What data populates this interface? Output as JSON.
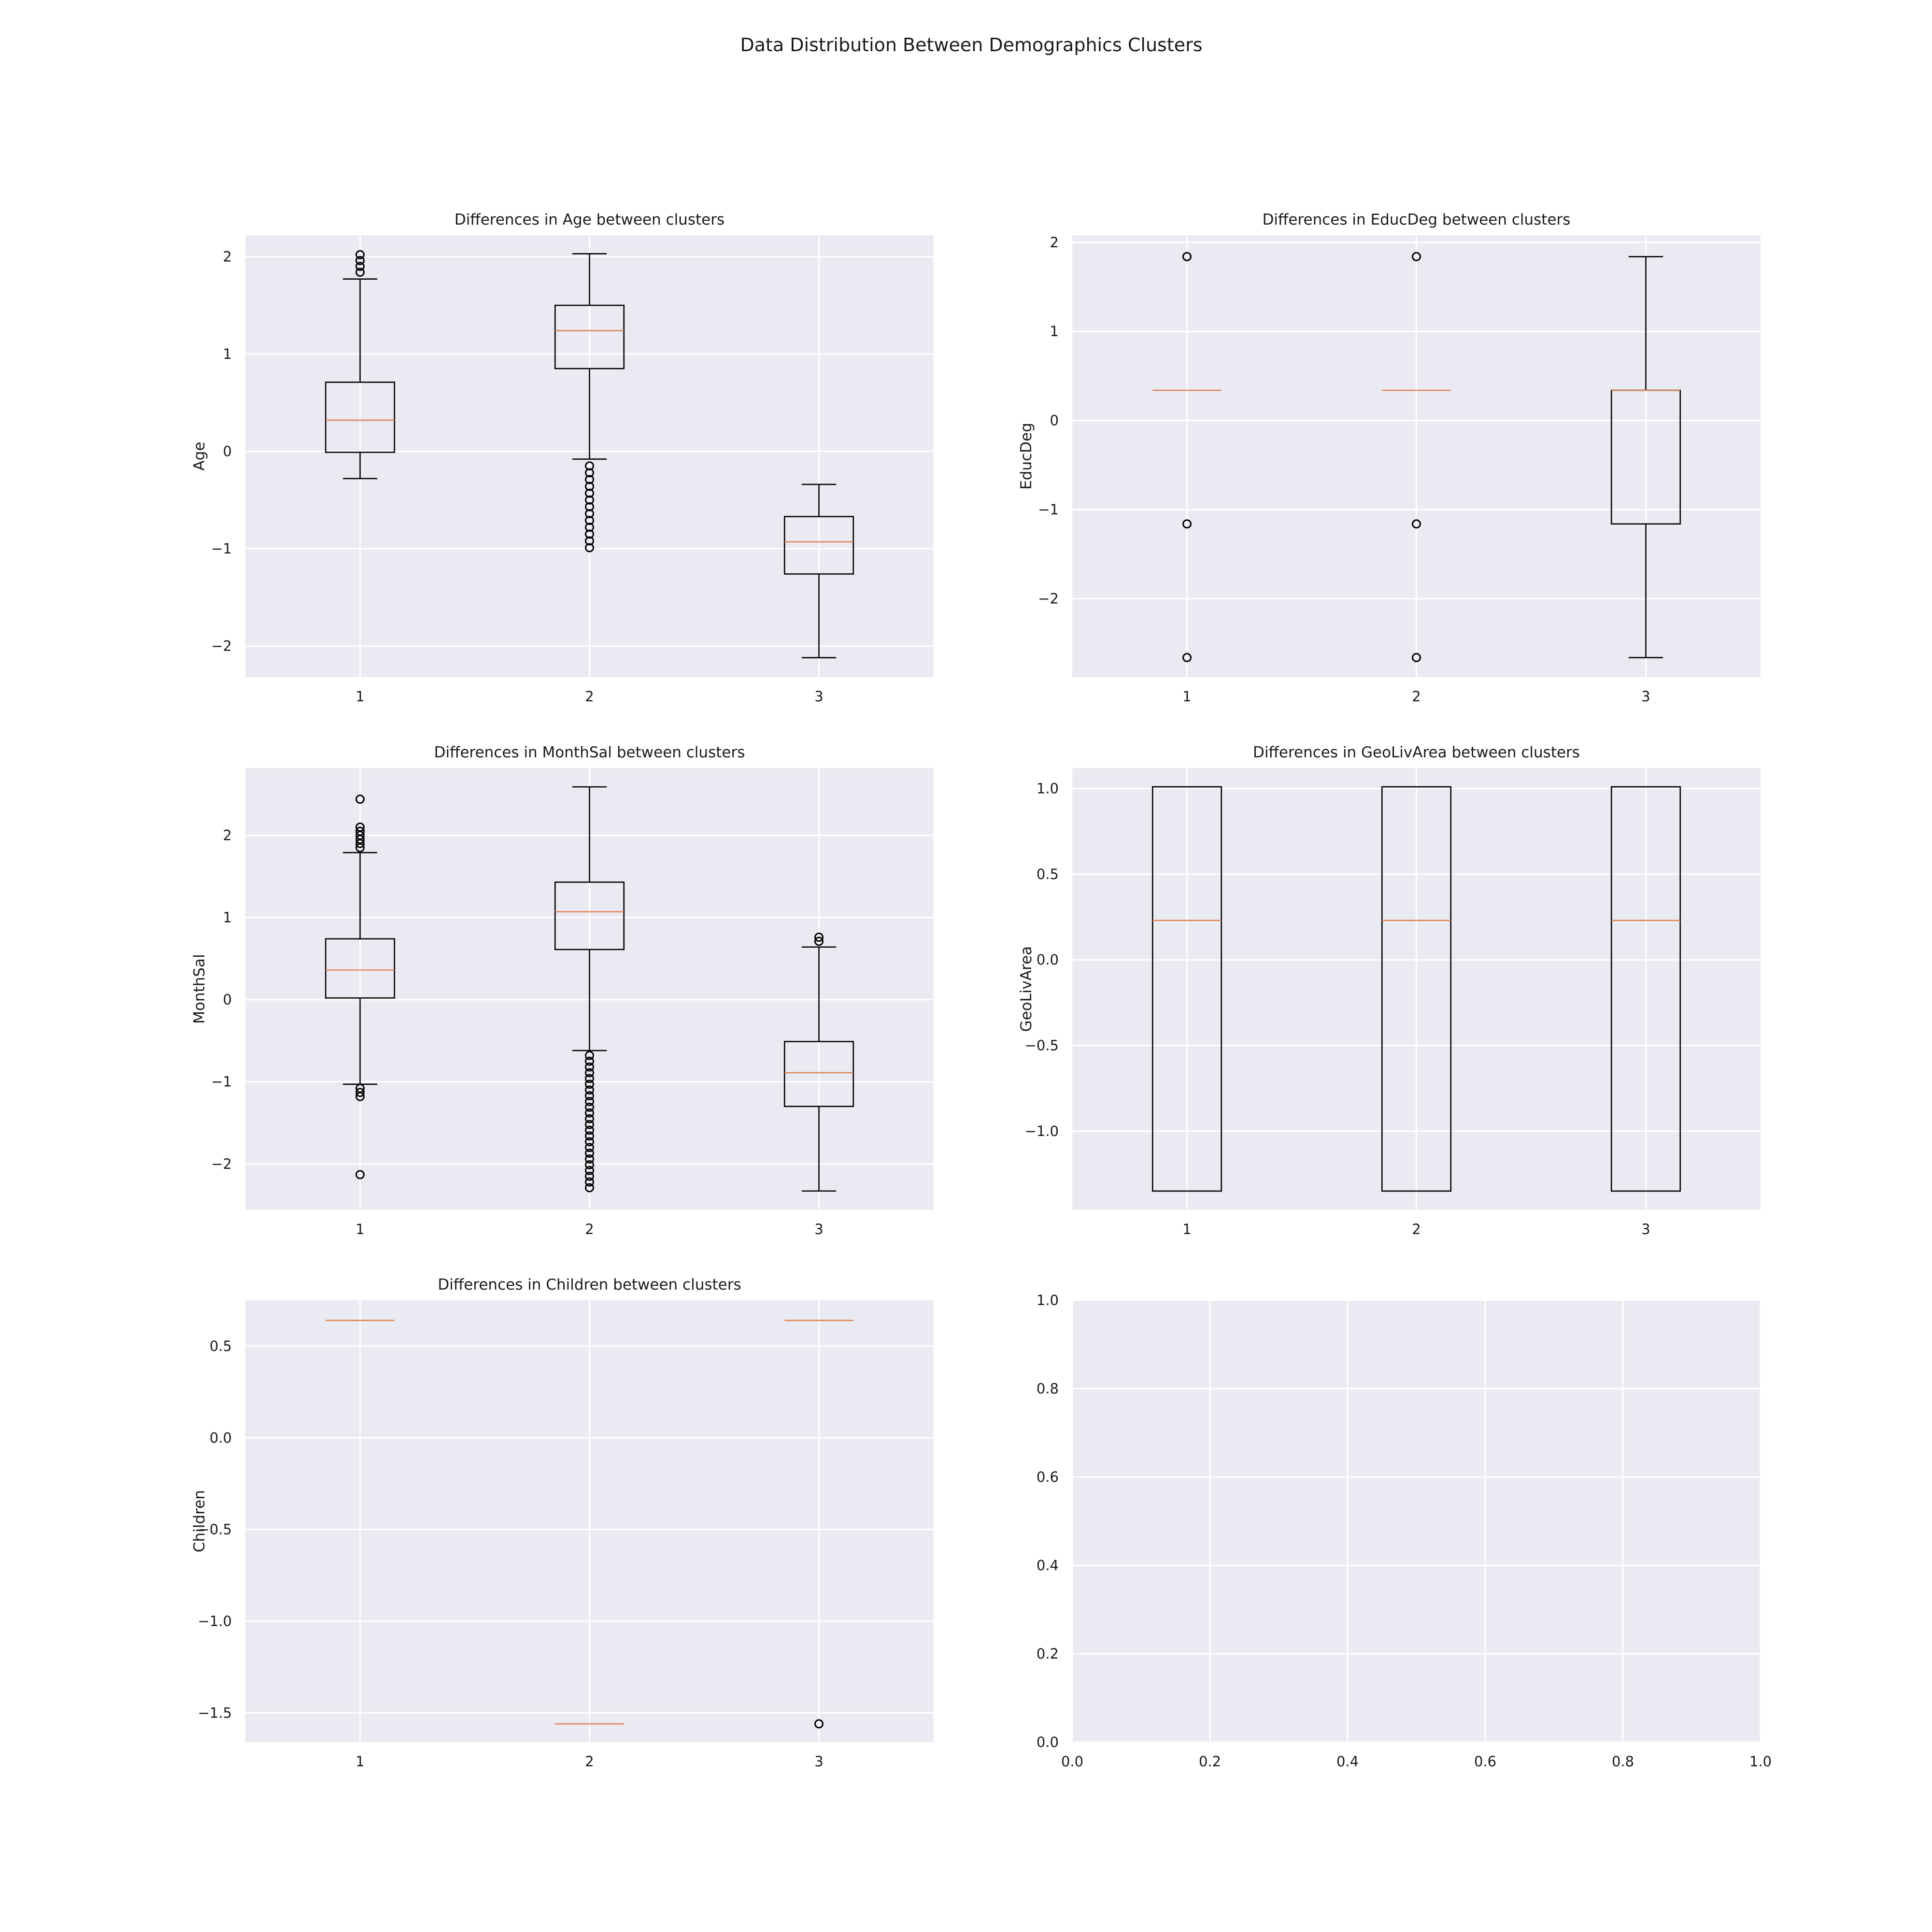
{
  "suptitle": "Data Distribution Between Demographics Clusters",
  "chart_data": [
    {
      "type": "boxplot",
      "title": "Differences in Age between clusters",
      "ylabel": "Age",
      "categories": [
        "1",
        "2",
        "3"
      ],
      "ylim": [
        -2.32,
        2.22
      ],
      "yticks": [
        -2,
        -1,
        0,
        1,
        2
      ],
      "ytick_labels": [
        "−2",
        "−1",
        "0",
        "1",
        "2"
      ],
      "boxes": [
        {
          "whislo": -0.28,
          "q1": -0.01,
          "med": 0.32,
          "q3": 0.71,
          "whishi": 1.77,
          "fliers": [
            1.84,
            1.9,
            1.96,
            2.02
          ]
        },
        {
          "whislo": -0.08,
          "q1": 0.85,
          "med": 1.24,
          "q3": 1.5,
          "whishi": 2.03,
          "fliers": [
            -0.15,
            -0.22,
            -0.29,
            -0.36,
            -0.43,
            -0.5,
            -0.57,
            -0.64,
            -0.71,
            -0.78,
            -0.85,
            -0.92,
            -0.99
          ]
        },
        {
          "whislo": -2.12,
          "q1": -1.26,
          "med": -0.93,
          "q3": -0.67,
          "whishi": -0.34,
          "fliers": []
        }
      ]
    },
    {
      "type": "boxplot",
      "title": "Differences in EducDeg between clusters",
      "ylabel": "EducDeg",
      "categories": [
        "1",
        "2",
        "3"
      ],
      "ylim": [
        -2.88,
        2.08
      ],
      "yticks": [
        -2,
        -1,
        0,
        1,
        2
      ],
      "ytick_labels": [
        "−2",
        "−1",
        "0",
        "1",
        "2"
      ],
      "boxes": [
        {
          "whislo": 0.34,
          "q1": 0.34,
          "med": 0.34,
          "q3": 0.34,
          "whishi": 0.34,
          "fliers": [
            1.84,
            -1.16,
            -2.66
          ]
        },
        {
          "whislo": 0.34,
          "q1": 0.34,
          "med": 0.34,
          "q3": 0.34,
          "whishi": 0.34,
          "fliers": [
            1.84,
            -1.16,
            -2.66
          ]
        },
        {
          "whislo": -2.66,
          "q1": -1.16,
          "med": 0.34,
          "q3": 0.34,
          "whishi": 1.84,
          "fliers": []
        }
      ]
    },
    {
      "type": "boxplot",
      "title": "Differences in MonthSal between clusters",
      "ylabel": "MonthSal",
      "categories": [
        "1",
        "2",
        "3"
      ],
      "ylim": [
        -2.56,
        2.82
      ],
      "yticks": [
        -2,
        -1,
        0,
        1,
        2
      ],
      "ytick_labels": [
        "−2",
        "−1",
        "0",
        "1",
        "2"
      ],
      "boxes": [
        {
          "whislo": -1.03,
          "q1": 0.02,
          "med": 0.36,
          "q3": 0.74,
          "whishi": 1.79,
          "fliers": [
            1.85,
            1.9,
            1.95,
            2.0,
            2.05,
            2.1,
            2.44,
            -1.08,
            -1.13,
            -1.18,
            -2.13
          ]
        },
        {
          "whislo": -0.62,
          "q1": 0.61,
          "med": 1.07,
          "q3": 1.43,
          "whishi": 2.59,
          "fliers": [
            -0.68,
            -0.75,
            -0.82,
            -0.89,
            -0.96,
            -1.03,
            -1.1,
            -1.17,
            -1.24,
            -1.31,
            -1.38,
            -1.45,
            -1.52,
            -1.59,
            -1.66,
            -1.73,
            -1.8,
            -1.87,
            -1.94,
            -2.01,
            -2.08,
            -2.15,
            -2.22,
            -2.29
          ]
        },
        {
          "whislo": -2.33,
          "q1": -1.3,
          "med": -0.89,
          "q3": -0.51,
          "whishi": 0.64,
          "fliers": [
            0.71,
            0.76
          ]
        }
      ]
    },
    {
      "type": "boxplot",
      "title": "Differences in GeoLivArea between clusters",
      "ylabel": "GeoLivArea",
      "categories": [
        "1",
        "2",
        "3"
      ],
      "ylim": [
        -1.46,
        1.12
      ],
      "yticks": [
        -1.0,
        -0.5,
        0.0,
        0.5,
        1.0
      ],
      "ytick_labels": [
        "−1.0",
        "−0.5",
        "0.0",
        "0.5",
        "1.0"
      ],
      "boxes": [
        {
          "whislo": -1.35,
          "q1": -1.35,
          "med": 0.23,
          "q3": 1.01,
          "whishi": 1.01,
          "fliers": []
        },
        {
          "whislo": -1.35,
          "q1": -1.35,
          "med": 0.23,
          "q3": 1.01,
          "whishi": 1.01,
          "fliers": []
        },
        {
          "whislo": -1.35,
          "q1": -1.35,
          "med": 0.23,
          "q3": 1.01,
          "whishi": 1.01,
          "fliers": []
        }
      ]
    },
    {
      "type": "boxplot",
      "title": "Differences in Children between clusters",
      "ylabel": "Children",
      "categories": [
        "1",
        "2",
        "3"
      ],
      "ylim": [
        -1.66,
        0.75
      ],
      "yticks": [
        -1.5,
        -1.0,
        -0.5,
        0.0,
        0.5
      ],
      "ytick_labels": [
        "−1.5",
        "−1.0",
        "−0.5",
        "0.0",
        "0.5"
      ],
      "boxes": [
        {
          "whislo": 0.64,
          "q1": 0.64,
          "med": 0.64,
          "q3": 0.64,
          "whishi": 0.64,
          "fliers": []
        },
        {
          "whislo": -1.56,
          "q1": -1.56,
          "med": -1.56,
          "q3": -1.56,
          "whishi": -1.56,
          "fliers": []
        },
        {
          "whislo": 0.64,
          "q1": 0.64,
          "med": 0.64,
          "q3": 0.64,
          "whishi": 0.64,
          "fliers": [
            -1.56
          ]
        }
      ]
    },
    {
      "type": "empty",
      "title": "",
      "ylabel": "",
      "xlim": [
        0,
        1
      ],
      "ylim": [
        0,
        1
      ],
      "xticks": [
        0.0,
        0.2,
        0.4,
        0.6,
        0.8,
        1.0
      ],
      "xtick_labels": [
        "0.0",
        "0.2",
        "0.4",
        "0.6",
        "0.8",
        "1.0"
      ],
      "yticks": [
        0.0,
        0.2,
        0.4,
        0.6,
        0.8,
        1.0
      ],
      "ytick_labels": [
        "0.0",
        "0.2",
        "0.4",
        "0.6",
        "0.8",
        "1.0"
      ]
    }
  ]
}
